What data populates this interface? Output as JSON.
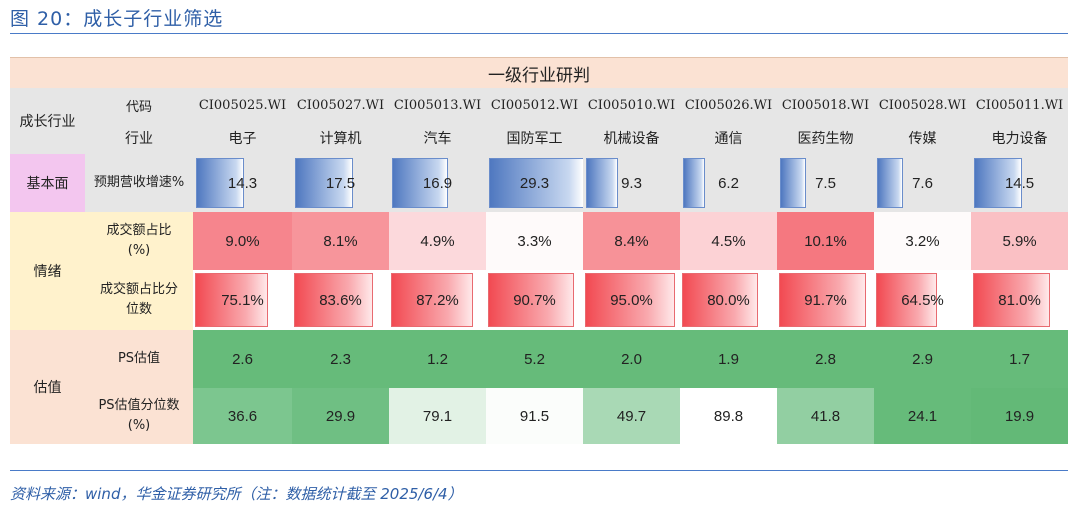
{
  "title": "图 20：成长子行业筛选",
  "source": "资料来源：wind，华金证券研究所（注：数据统计截至 2025/6/4）",
  "table": {
    "header_band": "一级行业研判",
    "row_group_label": "成长行业",
    "code_label": "代码",
    "industry_label": "行业",
    "codes": [
      "CI005025.WI",
      "CI005027.WI",
      "CI005013.WI",
      "CI005012.WI",
      "CI005010.WI",
      "CI005026.WI",
      "CI005018.WI",
      "CI005028.WI",
      "CI005011.WI"
    ],
    "industries": [
      "电子",
      "计算机",
      "汽车",
      "国防军工",
      "机械设备",
      "通信",
      "医药生物",
      "传媒",
      "电力设备"
    ],
    "groups": {
      "fundamental": "基本面",
      "sentiment": "情绪",
      "valuation": "估值"
    },
    "metrics": {
      "revenue_growth": {
        "label": "预期营收增速%",
        "values": [
          "14.3",
          "17.5",
          "16.9",
          "29.3",
          "9.3",
          "6.2",
          "7.5",
          "7.6",
          "14.5"
        ]
      },
      "turnover_share": {
        "label1": "成交额占比",
        "label2": "(%)",
        "values": [
          "9.0%",
          "8.1%",
          "4.9%",
          "3.3%",
          "8.4%",
          "4.5%",
          "10.1%",
          "3.2%",
          "5.9%"
        ]
      },
      "turnover_pct": {
        "label1": "成交额占比分",
        "label2": "位数",
        "values": [
          "75.1%",
          "83.6%",
          "87.2%",
          "90.7%",
          "95.0%",
          "80.0%",
          "91.7%",
          "64.5%",
          "81.0%"
        ]
      },
      "ps": {
        "label": "PS估值",
        "values": [
          "2.6",
          "2.3",
          "1.2",
          "5.2",
          "2.0",
          "1.9",
          "2.8",
          "2.9",
          "1.7"
        ]
      },
      "ps_pct": {
        "label1": "PS估值分位数",
        "label2": "(%)",
        "values": [
          "36.6",
          "29.9",
          "79.1",
          "91.5",
          "49.7",
          "89.8",
          "41.8",
          "24.1",
          "19.9"
        ]
      }
    },
    "colors": {
      "turnover_share": [
        "#f6858d",
        "#f7959b",
        "#fcd9dc",
        "#fefafa",
        "#f79298",
        "#fcd2d5",
        "#f57880",
        "#fefbfb",
        "#fac0c4"
      ],
      "ps": [
        "#66bb7a",
        "#66bb7a",
        "#66bb7a",
        "#66bb7a",
        "#66bb7a",
        "#66bb7a",
        "#66bb7a",
        "#66bb7a",
        "#66bb7a"
      ],
      "ps_pct": [
        "#7cc68f",
        "#6fbf83",
        "#e2f2e5",
        "#fbfdfb",
        "#a9d9b5",
        "#ffffff",
        "#92cfa2",
        "#66bb7a",
        "#63b977"
      ],
      "fundamental_bg": "#f3c6ef",
      "sentiment_bg": "#fff2cc",
      "valuation_bg": "#fbe2d3"
    }
  }
}
